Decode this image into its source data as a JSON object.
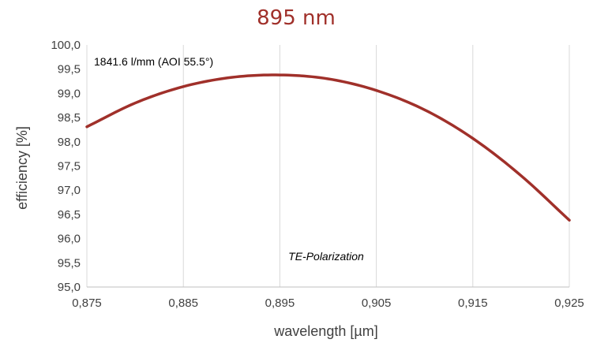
{
  "colors": {
    "series": "#a0302a",
    "title": "#a0302a",
    "grid": "#d9d9d9",
    "text": "#404040"
  },
  "chart_data": {
    "type": "line",
    "title": "895 nm",
    "xlabel": "wavelength [µm]",
    "ylabel": "efficiency [%]",
    "xlim": [
      0.875,
      0.925
    ],
    "ylim": [
      95.0,
      100.0
    ],
    "x_ticks": [
      0.875,
      0.885,
      0.895,
      0.905,
      0.915,
      0.925
    ],
    "x_tick_labels": [
      "0,875",
      "0,885",
      "0,895",
      "0,905",
      "0,915",
      "0,925"
    ],
    "y_ticks": [
      95.0,
      95.5,
      96.0,
      96.5,
      97.0,
      97.5,
      98.0,
      98.5,
      99.0,
      99.5,
      100.0
    ],
    "y_tick_labels": [
      "95,0",
      "95,5",
      "96,0",
      "96,5",
      "97,0",
      "97,5",
      "98,0",
      "98,5",
      "99,0",
      "99,5",
      "100,0"
    ],
    "grid": "vertical",
    "annotations": [
      {
        "text": "1841.6 l/mm (AOI 55.5°)",
        "position": "top-left"
      },
      {
        "text": "TE-Polarization",
        "position": "bottom-center"
      }
    ],
    "series": [
      {
        "x": [
          0.875,
          0.88,
          0.885,
          0.89,
          0.895,
          0.9,
          0.905,
          0.91,
          0.915,
          0.92,
          0.925
        ],
        "values": [
          98.31,
          98.8,
          99.14,
          99.33,
          99.38,
          99.3,
          99.06,
          98.66,
          98.07,
          97.3,
          96.38
        ]
      }
    ]
  }
}
